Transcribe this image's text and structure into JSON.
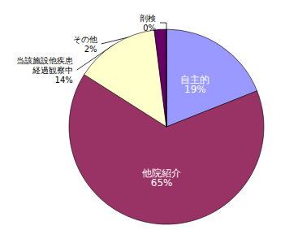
{
  "chart_data": {
    "type": "pie",
    "categories": [
      "自主的",
      "他院紹介",
      "当該施設他疾患経過観察中",
      "その他",
      "剖検"
    ],
    "values": [
      19,
      65,
      14,
      2,
      0
    ],
    "value_labels": [
      "19%",
      "65%",
      "14%",
      "2%",
      "0%"
    ],
    "colors": [
      "#9999ff",
      "#993366",
      "#ffffcc",
      "#660066",
      "#ccffff"
    ],
    "data_labels": true
  }
}
